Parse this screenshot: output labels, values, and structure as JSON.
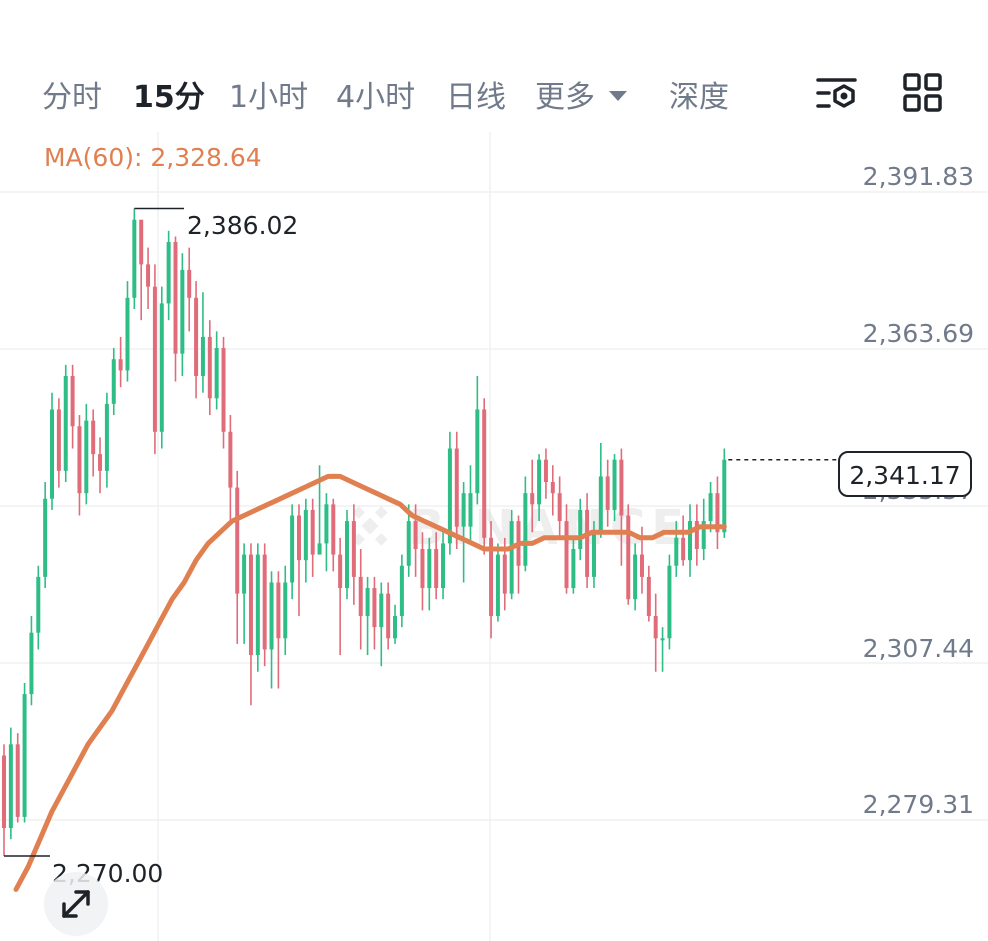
{
  "tabs": [
    {
      "label": "分时",
      "active": false
    },
    {
      "label": "15分",
      "active": true
    },
    {
      "label": "1小时",
      "active": false
    },
    {
      "label": "4小时",
      "active": false
    },
    {
      "label": "日线",
      "active": false
    },
    {
      "label": "更多",
      "active": false,
      "dropdown": true
    },
    {
      "label": "深度",
      "active": false
    }
  ],
  "toolbar": {
    "settings_icon": "chart-settings-icon",
    "layout_icon": "grid-layout-icon"
  },
  "indicator": {
    "ma_label": "MA(60): 2,328.64",
    "ma_color": "#e07f50"
  },
  "colors": {
    "up": "#2ebd85",
    "down": "#e06c7a",
    "ma": "#e07f50"
  },
  "watermark": "BINANCE",
  "chart_data": {
    "type": "candlestick",
    "y_axis_labels": [
      "2,391.83",
      "2,363.69",
      "2,335.57",
      "2,307.44",
      "2,279.31"
    ],
    "ylim": [
      2264,
      2392
    ],
    "current_price": "2,341.17",
    "period_high": "2,386.02",
    "period_low": "2,270.00",
    "candles": [
      [
        2288,
        2275,
        2290,
        2270
      ],
      [
        2275,
        2290,
        2293,
        2273
      ],
      [
        2290,
        2277,
        2292,
        2276
      ],
      [
        2277,
        2299,
        2301,
        2276
      ],
      [
        2299,
        2310,
        2313,
        2297
      ],
      [
        2310,
        2320,
        2322,
        2307
      ],
      [
        2320,
        2334,
        2337,
        2318
      ],
      [
        2334,
        2350,
        2353,
        2332
      ],
      [
        2350,
        2339,
        2352,
        2336
      ],
      [
        2339,
        2356,
        2358,
        2337
      ],
      [
        2356,
        2347,
        2358,
        2343
      ],
      [
        2347,
        2335,
        2349,
        2331
      ],
      [
        2335,
        2348,
        2351,
        2333
      ],
      [
        2348,
        2342,
        2350,
        2338
      ],
      [
        2342,
        2339,
        2345,
        2335
      ],
      [
        2339,
        2351,
        2353,
        2336
      ],
      [
        2351,
        2359,
        2361,
        2349
      ],
      [
        2359,
        2357,
        2363,
        2354
      ],
      [
        2357,
        2370,
        2373,
        2355
      ],
      [
        2370,
        2384,
        2386,
        2368
      ],
      [
        2384,
        2376,
        2383,
        2366
      ],
      [
        2376,
        2372,
        2379,
        2368
      ],
      [
        2372,
        2346,
        2376,
        2342
      ],
      [
        2346,
        2369,
        2372,
        2343
      ],
      [
        2369,
        2380,
        2382,
        2366
      ],
      [
        2380,
        2360,
        2381,
        2355
      ],
      [
        2360,
        2375,
        2378,
        2356
      ],
      [
        2375,
        2370,
        2379,
        2364
      ],
      [
        2370,
        2356,
        2373,
        2352
      ],
      [
        2356,
        2363,
        2371,
        2353
      ],
      [
        2363,
        2352,
        2366,
        2349
      ],
      [
        2352,
        2361,
        2364,
        2350
      ],
      [
        2361,
        2346,
        2363,
        2343
      ],
      [
        2346,
        2336,
        2349,
        2330
      ],
      [
        2336,
        2317,
        2339,
        2308
      ],
      [
        2317,
        2324,
        2326,
        2308
      ],
      [
        2324,
        2306,
        2326,
        2297
      ],
      [
        2306,
        2324,
        2326,
        2303
      ],
      [
        2324,
        2307,
        2326,
        2304
      ],
      [
        2307,
        2319,
        2321,
        2300
      ],
      [
        2319,
        2309,
        2321,
        2300
      ],
      [
        2309,
        2319,
        2322,
        2306
      ],
      [
        2319,
        2331,
        2333,
        2316
      ],
      [
        2331,
        2323,
        2333,
        2313
      ],
      [
        2323,
        2332,
        2334,
        2319
      ],
      [
        2332,
        2324,
        2334,
        2320
      ],
      [
        2324,
        2326,
        2340,
        2325
      ],
      [
        2326,
        2333,
        2335,
        2321
      ],
      [
        2333,
        2324,
        2334,
        2321
      ],
      [
        2324,
        2318,
        2327,
        2306
      ],
      [
        2318,
        2330,
        2332,
        2316
      ],
      [
        2330,
        2320,
        2333,
        2315
      ],
      [
        2320,
        2313,
        2325,
        2307
      ],
      [
        2313,
        2318,
        2320,
        2306
      ],
      [
        2318,
        2311,
        2320,
        2307
      ],
      [
        2311,
        2317,
        2319,
        2304
      ],
      [
        2317,
        2309,
        2319,
        2307
      ],
      [
        2309,
        2313,
        2315,
        2308
      ],
      [
        2313,
        2322,
        2324,
        2311
      ],
      [
        2322,
        2330,
        2333,
        2320
      ],
      [
        2330,
        2325,
        2333,
        2320
      ],
      [
        2325,
        2318,
        2328,
        2314
      ],
      [
        2318,
        2325,
        2327,
        2314
      ],
      [
        2325,
        2318,
        2328,
        2316
      ],
      [
        2318,
        2326,
        2328,
        2316
      ],
      [
        2326,
        2343,
        2346,
        2324
      ],
      [
        2343,
        2329,
        2346,
        2325
      ],
      [
        2329,
        2335,
        2337,
        2319
      ],
      [
        2329,
        2335,
        2340,
        2326
      ],
      [
        2335,
        2350,
        2356,
        2333
      ],
      [
        2350,
        2327,
        2352,
        2324
      ],
      [
        2327,
        2313,
        2330,
        2309
      ],
      [
        2313,
        2324,
        2326,
        2312
      ],
      [
        2324,
        2317,
        2327,
        2314
      ],
      [
        2317,
        2330,
        2332,
        2316
      ],
      [
        2330,
        2322,
        2331,
        2317
      ],
      [
        2322,
        2335,
        2338,
        2321
      ],
      [
        2335,
        2333,
        2341,
        2328
      ],
      [
        2333,
        2341,
        2342,
        2330
      ],
      [
        2341,
        2337,
        2343,
        2334
      ],
      [
        2337,
        2335,
        2340,
        2331
      ],
      [
        2335,
        2330,
        2338,
        2327
      ],
      [
        2330,
        2318,
        2333,
        2317
      ],
      [
        2318,
        2325,
        2327,
        2317
      ],
      [
        2325,
        2332,
        2334,
        2323
      ],
      [
        2332,
        2320,
        2335,
        2318
      ],
      [
        2320,
        2328,
        2330,
        2318
      ],
      [
        2328,
        2338,
        2344,
        2327
      ],
      [
        2338,
        2332,
        2341,
        2329
      ],
      [
        2332,
        2341,
        2342,
        2330
      ],
      [
        2341,
        2331,
        2343,
        2322
      ],
      [
        2331,
        2316,
        2333,
        2315
      ],
      [
        2316,
        2324,
        2326,
        2314
      ],
      [
        2324,
        2320,
        2329,
        2317
      ],
      [
        2320,
        2313,
        2322,
        2312
      ],
      [
        2313,
        2309,
        2317,
        2303
      ],
      [
        2309,
        2309,
        2311,
        2303
      ],
      [
        2309,
        2322,
        2324,
        2307
      ],
      [
        2322,
        2327,
        2330,
        2320
      ],
      [
        2327,
        2323,
        2331,
        2322
      ],
      [
        2323,
        2330,
        2333,
        2320
      ],
      [
        2330,
        2325,
        2333,
        2322
      ],
      [
        2325,
        2330,
        2334,
        2323
      ],
      [
        2330,
        2335,
        2337,
        2328
      ],
      [
        2335,
        2328,
        2338,
        2325
      ],
      [
        2328,
        2341,
        2343,
        2327
      ]
    ],
    "ma60": [
      2264,
      2268,
      2273,
      2278,
      2282,
      2286,
      2290,
      2293,
      2296,
      2300,
      2304,
      2308,
      2312,
      2316,
      2319,
      2323,
      2326,
      2328,
      2330,
      2331,
      2332,
      2333,
      2334,
      2335,
      2336,
      2337,
      2338,
      2338,
      2337,
      2336,
      2335,
      2334,
      2333,
      2331,
      2330,
      2329,
      2328,
      2327,
      2326,
      2325,
      2325,
      2325,
      2326,
      2326,
      2327,
      2327,
      2327,
      2327,
      2328,
      2328,
      2328,
      2328,
      2327,
      2327,
      2328,
      2328,
      2328,
      2329,
      2329,
      2329
    ]
  }
}
